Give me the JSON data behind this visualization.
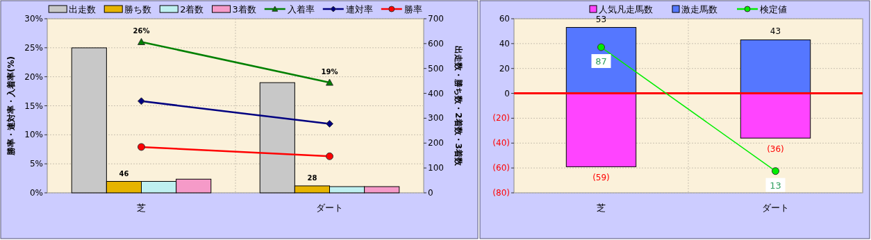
{
  "chart_data": [
    {
      "type": "bar",
      "categories": [
        "芝",
        "ダート"
      ],
      "ylabel": "勝率・連対率・入着率(%)",
      "y2label": "出走数・勝ち数・2着数・3着数",
      "ylim": [
        0,
        30
      ],
      "yticks": [
        {
          "value": 0,
          "label": "0%"
        },
        {
          "value": 5,
          "label": "5%"
        },
        {
          "value": 10,
          "label": "10%"
        },
        {
          "value": 15,
          "label": "15%"
        },
        {
          "value": 20,
          "label": "20%"
        },
        {
          "value": 25,
          "label": "25%"
        },
        {
          "value": 30,
          "label": "30%"
        }
      ],
      "y2lim": [
        0,
        700
      ],
      "y2ticks": [
        0,
        100,
        200,
        300,
        400,
        500,
        600,
        700
      ],
      "grid": true,
      "legend": "top",
      "series": [
        {
          "name": "出走数",
          "axis": "y2",
          "color": "#c8c8c8",
          "values": [
            583,
            443
          ]
        },
        {
          "name": "勝ち数",
          "axis": "y2",
          "color": "#e6b400",
          "values": [
            46,
            28
          ],
          "value_labels": [
            "46",
            "28"
          ]
        },
        {
          "name": "2着数",
          "axis": "y2",
          "color": "#bff0f0",
          "values": [
            46,
            25
          ]
        },
        {
          "name": "3着数",
          "axis": "y2",
          "color": "#f59ac8",
          "values": [
            55,
            25
          ]
        },
        {
          "name": "入着率",
          "type": "line",
          "color": "#008000",
          "marker": "triangle",
          "values": [
            26,
            19
          ],
          "value_labels": [
            "26%",
            "19%"
          ]
        },
        {
          "name": "連対率",
          "type": "line",
          "color": "#000080",
          "marker": "diamond",
          "values": [
            15.8,
            11.9
          ]
        },
        {
          "name": "勝率",
          "type": "line",
          "color": "#ff0000",
          "marker": "circle",
          "values": [
            7.9,
            6.3
          ]
        }
      ]
    },
    {
      "type": "bar",
      "categories": [
        "芝",
        "ダート"
      ],
      "stacked": true,
      "ylim": [
        -80,
        60
      ],
      "yticks": [
        {
          "value": 60,
          "label": "60"
        },
        {
          "value": 40,
          "label": "40"
        },
        {
          "value": 20,
          "label": "20"
        },
        {
          "value": 0,
          "label": "0"
        },
        {
          "value": -20,
          "label": "(20)"
        },
        {
          "value": -40,
          "label": "(40)"
        },
        {
          "value": -60,
          "label": "(60)"
        },
        {
          "value": -80,
          "label": "(80)"
        }
      ],
      "y2lim": [
        0,
        104
      ],
      "grid": true,
      "legend": "top",
      "ref_lines": [
        {
          "axis": "y",
          "value": 0,
          "color": "#ff0000"
        }
      ],
      "series": [
        {
          "name": "人気凡走馬数",
          "color": "#ff44ff",
          "values": [
            -59,
            -36
          ],
          "value_labels": [
            "(59)",
            "(36)"
          ]
        },
        {
          "name": "激走馬数",
          "color": "#5577ff",
          "values": [
            53,
            43
          ],
          "value_labels": [
            "53",
            "43"
          ]
        },
        {
          "name": "検定値",
          "type": "line",
          "axis": "y2",
          "color": "#00ee00",
          "marker": "circle",
          "values": [
            87,
            13
          ],
          "value_labels": [
            "87",
            "13"
          ]
        }
      ]
    }
  ]
}
